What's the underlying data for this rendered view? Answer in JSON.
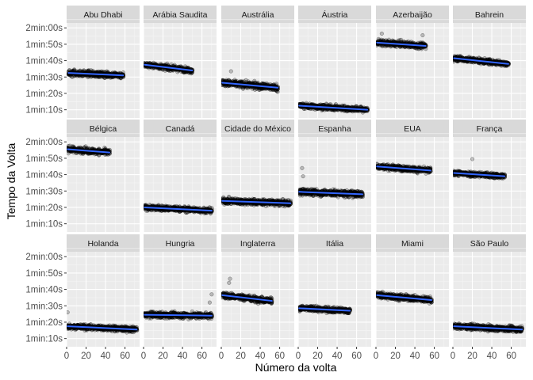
{
  "chart_data": {
    "type": "scatter",
    "layout": "facet-grid",
    "xlabel": "Número da volta",
    "ylabel": "Tempo da Volta",
    "xlim": [
      0,
      75
    ],
    "ylim": [
      65,
      123
    ],
    "x_ticks": [
      0,
      20,
      40,
      60
    ],
    "x_tick_labels": [
      "0",
      "20",
      "40",
      "60"
    ],
    "y_ticks": [
      70,
      80,
      90,
      100,
      110,
      120
    ],
    "y_tick_labels": [
      "1min:10s",
      "1min:20s",
      "1min:30s",
      "1min:40s",
      "1min:50s",
      "2min:00s"
    ],
    "grid": true,
    "trend_line": "linear",
    "colors": {
      "panel_background": "#ebebeb",
      "strip_background": "#d9d9d9",
      "grid_major": "#ffffff",
      "grid_minor": "#f5f5f5",
      "points": "#000000",
      "trend": "#3366ff"
    },
    "facets": [
      {
        "name": "Abu Dhabi",
        "x_range": [
          2,
          58
        ],
        "trend": [
          92.5,
          91.0
        ],
        "spread": 1.8,
        "outliers": []
      },
      {
        "name": "Arábia Saudita",
        "x_range": [
          1,
          50
        ],
        "trend": [
          97.5,
          94.0
        ],
        "spread": 1.6,
        "outliers": []
      },
      {
        "name": "Austrália",
        "x_range": [
          1,
          58
        ],
        "trend": [
          86.5,
          83.5
        ],
        "spread": 2.0,
        "outliers": [
          [
            10,
            93.5
          ]
        ]
      },
      {
        "name": "Áustria",
        "x_range": [
          1,
          71
        ],
        "trend": [
          72.5,
          70.0
        ],
        "spread": 1.6,
        "outliers": []
      },
      {
        "name": "Azerbaijão",
        "x_range": [
          1,
          51
        ],
        "trend": [
          111.0,
          109.0
        ],
        "spread": 1.8,
        "outliers": [
          [
            6,
            116.5
          ],
          [
            48,
            115.5
          ]
        ]
      },
      {
        "name": "Bahrein",
        "x_range": [
          1,
          57
        ],
        "trend": [
          101.5,
          98.0
        ],
        "spread": 1.6,
        "outliers": []
      },
      {
        "name": "Bélgica",
        "x_range": [
          1,
          44
        ],
        "trend": [
          115.5,
          113.5
        ],
        "spread": 1.8,
        "outliers": []
      },
      {
        "name": "Canadá",
        "x_range": [
          1,
          70
        ],
        "trend": [
          80.0,
          78.0
        ],
        "spread": 1.6,
        "outliers": []
      },
      {
        "name": "Cidade do México",
        "x_range": [
          1,
          71
        ],
        "trend": [
          84.0,
          82.5
        ],
        "spread": 1.8,
        "outliers": []
      },
      {
        "name": "Espanha",
        "x_range": [
          1,
          66
        ],
        "trend": [
          89.5,
          88.0
        ],
        "spread": 2.0,
        "outliers": [
          [
            5,
            99.0
          ],
          [
            4,
            104.0
          ]
        ]
      },
      {
        "name": "EUA",
        "x_range": [
          1,
          56
        ],
        "trend": [
          105.0,
          102.5
        ],
        "spread": 1.6,
        "outliers": []
      },
      {
        "name": "França",
        "x_range": [
          1,
          53
        ],
        "trend": [
          101.0,
          99.0
        ],
        "spread": 1.6,
        "outliers": [
          [
            20,
            109.5
          ]
        ]
      },
      {
        "name": "Holanda",
        "x_range": [
          1,
          72
        ],
        "trend": [
          77.5,
          75.5
        ],
        "spread": 1.6,
        "outliers": [
          [
            1,
            86.0
          ]
        ]
      },
      {
        "name": "Hungria",
        "x_range": [
          1,
          70
        ],
        "trend": [
          84.5,
          84.0
        ],
        "spread": 1.8,
        "outliers": [
          [
            68,
            92.0
          ],
          [
            70,
            97.0
          ]
        ]
      },
      {
        "name": "Inglaterra",
        "x_range": [
          1,
          52
        ],
        "trend": [
          96.5,
          93.0
        ],
        "spread": 1.8,
        "outliers": [
          [
            8,
            104.0
          ],
          [
            9,
            106.5
          ]
        ]
      },
      {
        "name": "Itália",
        "x_range": [
          1,
          53
        ],
        "trend": [
          88.5,
          87.0
        ],
        "spread": 1.6,
        "outliers": []
      },
      {
        "name": "Miami",
        "x_range": [
          1,
          57
        ],
        "trend": [
          96.5,
          93.5
        ],
        "spread": 1.8,
        "outliers": []
      },
      {
        "name": "São Paulo",
        "x_range": [
          1,
          71
        ],
        "trend": [
          77.5,
          75.5
        ],
        "spread": 1.6,
        "outliers": []
      }
    ]
  }
}
